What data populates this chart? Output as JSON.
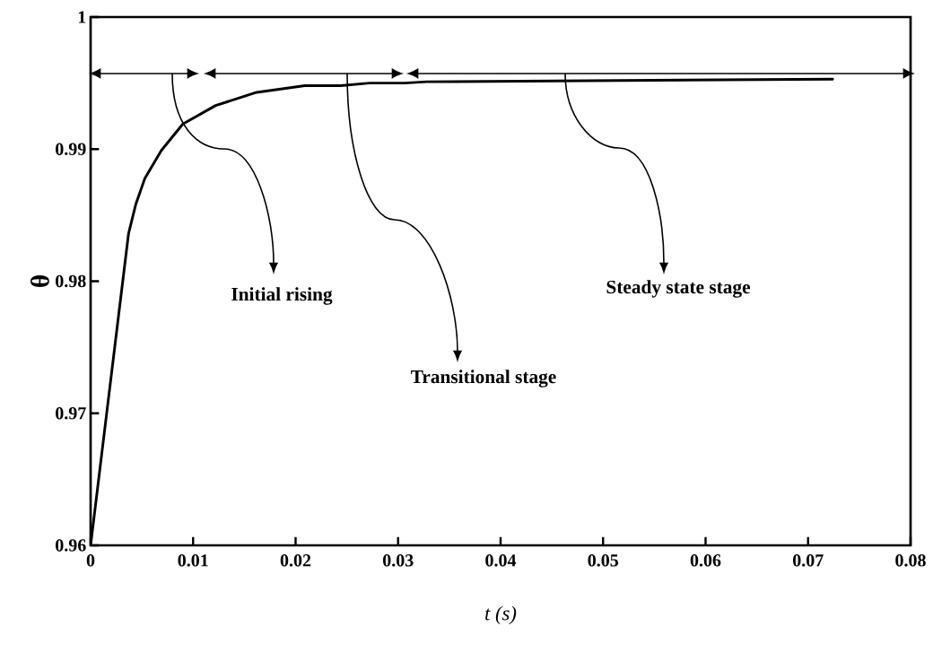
{
  "chart_data": {
    "type": "line",
    "xlabel": "t (s)",
    "ylabel": "θ",
    "x": [
      0,
      0.0037,
      0.0044,
      0.0053,
      0.0069,
      0.009,
      0.0122,
      0.0162,
      0.0209,
      0.0244,
      0.0272,
      0.0306,
      0.0328,
      0.0724
    ],
    "series": [
      {
        "color": "#000000",
        "values": [
          0.96,
          0.9836,
          0.9858,
          0.9878,
          0.9899,
          0.9919,
          0.9933,
          0.9943,
          0.9948,
          0.9948,
          0.995,
          0.995,
          0.9951,
          0.9953
        ]
      }
    ],
    "xlim": [
      0,
      0.08
    ],
    "ylim": [
      0.96,
      1
    ],
    "xticks": [
      0,
      0.01,
      0.02,
      0.03,
      0.04,
      0.05,
      0.06,
      0.07,
      0.08
    ],
    "yticks": [
      0.96,
      0.97,
      0.98,
      0.99,
      1
    ],
    "annotations": [
      "Initial rising",
      "Transitional stage",
      "Steady state stage"
    ]
  }
}
